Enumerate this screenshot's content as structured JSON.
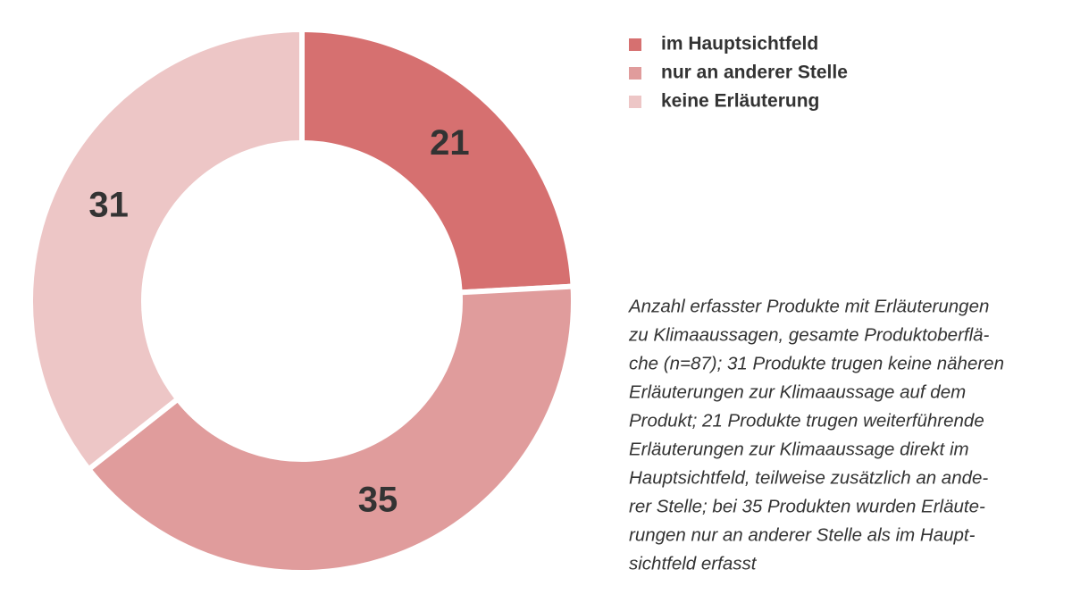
{
  "chart_data": {
    "type": "donut",
    "categories": [
      "im Hauptsichtfeld",
      "nur an anderer Stelle",
      "keine Erläuterung"
    ],
    "values": [
      21,
      35,
      31
    ],
    "colors": [
      "#d67070",
      "#e09c9c",
      "#edc6c6"
    ],
    "legend": "top-right",
    "note": [
      "Anzahl erfasster Produkte mit Erläuterungen",
      "zu Klimaaussagen, gesamte Produktoberflä-",
      "che (n=87); 31 Produkte trugen keine näheren",
      "Erläuterungen zur Klimaaussage auf dem",
      "Produkt; 21 Produkte trugen weiterführende",
      "Erläuterungen zur Klimaaussage direkt im",
      "Hauptsichtfeld, teilweise zusätzlich an ande-",
      "rer Stelle; bei 35 Produkten wurden Erläute-",
      "rungen nur an anderer Stelle als im Haupt-",
      "sichtfeld erfasst"
    ]
  }
}
